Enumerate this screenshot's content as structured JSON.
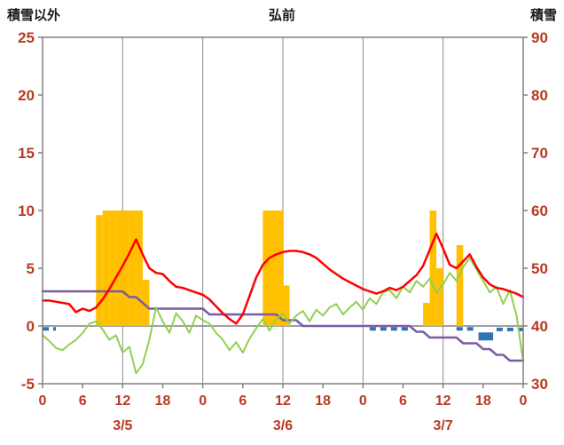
{
  "header": {
    "left_label": "積雪以外",
    "title": "弘前",
    "right_label": "積雪"
  },
  "colors": {
    "axis_label": "#b73a23",
    "grid": "#8c8c8c",
    "border": "#808080",
    "zero_line": "#808080",
    "bars": "#FFC000",
    "temperature": "#FF0000",
    "green": "#92D050",
    "snow_depth": "#7B5BA6",
    "blue": "#2E74B5",
    "title_text": "#1a1a1a"
  },
  "chart_data": {
    "type": "line",
    "title": "弘前",
    "left_axis": {
      "label": "積雪以外",
      "min": -5,
      "max": 25,
      "ticks": [
        25,
        20,
        15,
        10,
        5,
        0,
        -5
      ]
    },
    "right_axis": {
      "label": "積雪",
      "min": 30,
      "max": 90,
      "ticks": [
        90,
        80,
        70,
        60,
        50,
        40,
        30
      ]
    },
    "x_axis": {
      "min": 0,
      "max": 72,
      "tick_interval": 6,
      "gridline_interval": 12,
      "tick_labels": [
        "0",
        "6",
        "12",
        "18",
        "0",
        "6",
        "12",
        "18",
        "0",
        "6",
        "12",
        "18",
        "0"
      ],
      "day_labels": [
        {
          "label": "3/5",
          "hour": 12
        },
        {
          "label": "3/6",
          "hour": 36
        },
        {
          "label": "3/7",
          "hour": 60
        }
      ]
    },
    "series": [
      {
        "id": "sunshine-bars",
        "type": "bar",
        "axis": "left",
        "color_key": "bars",
        "points": [
          [
            8,
            9.6
          ],
          [
            9,
            10
          ],
          [
            10,
            10
          ],
          [
            11,
            10
          ],
          [
            12,
            10
          ],
          [
            13,
            10
          ],
          [
            14,
            10
          ],
          [
            15,
            4
          ],
          [
            33,
            10
          ],
          [
            34,
            10
          ],
          [
            35,
            10
          ],
          [
            36,
            3.5
          ],
          [
            57,
            2
          ],
          [
            58,
            10
          ],
          [
            59,
            5
          ],
          [
            62,
            7
          ]
        ]
      },
      {
        "id": "blue-tick-segments",
        "type": "segments",
        "axis": "left",
        "color_key": "blue",
        "segments": [
          {
            "start": 0,
            "end": 2,
            "value": -0.25,
            "thick": false
          },
          {
            "start": 49,
            "end": 55,
            "value": -0.25,
            "thick": false
          },
          {
            "start": 62,
            "end": 65,
            "value": -0.25,
            "thick": false
          },
          {
            "start": 65.3,
            "end": 67.5,
            "value": -0.9,
            "thick": true
          },
          {
            "start": 68,
            "end": 72,
            "value": -0.3,
            "thick": false
          }
        ]
      },
      {
        "id": "snow-depth-line",
        "type": "line",
        "axis": "right",
        "color_key": "snow_depth",
        "width": 2.5,
        "values": [
          46,
          46,
          46,
          46,
          46,
          46,
          46,
          46,
          46,
          46,
          46,
          46,
          46,
          45,
          45,
          44,
          43,
          43,
          43,
          43,
          43,
          43,
          43,
          43,
          43,
          42,
          42,
          42,
          42,
          42,
          42,
          42,
          42,
          42,
          42,
          42,
          41,
          41,
          41,
          40,
          40,
          40,
          40,
          40,
          40,
          40,
          40,
          40,
          40,
          40,
          40,
          40,
          40,
          40,
          40,
          40,
          39,
          39,
          38,
          38,
          38,
          38,
          38,
          37,
          37,
          37,
          36,
          36,
          35,
          35,
          34,
          34,
          34
        ]
      },
      {
        "id": "green-line",
        "type": "line",
        "axis": "left",
        "color_key": "green",
        "width": 2,
        "values": [
          -0.8,
          -1.3,
          -1.9,
          -2.1,
          -1.6,
          -1.2,
          -0.6,
          0.2,
          0.4,
          -0.3,
          -1.2,
          -0.8,
          -2.3,
          -1.8,
          -4.1,
          -3.3,
          -1.2,
          1.6,
          0.4,
          -0.6,
          1.1,
          0.4,
          -0.6,
          0.9,
          0.5,
          0.2,
          -0.6,
          -1.2,
          -2.1,
          -1.4,
          -2.3,
          -1.1,
          -0.2,
          0.6,
          -0.4,
          0.6,
          1.1,
          0.2,
          0.9,
          1.3,
          0.4,
          1.4,
          0.9,
          1.6,
          1.9,
          1.0,
          1.6,
          2.1,
          1.4,
          2.4,
          1.9,
          2.9,
          3.1,
          2.4,
          3.4,
          2.9,
          3.9,
          3.4,
          4.1,
          2.9,
          3.6,
          4.6,
          3.9,
          5.1,
          5.9,
          4.9,
          3.9,
          2.9,
          3.4,
          1.9,
          3.1,
          0.9,
          -3.1
        ]
      },
      {
        "id": "temperature-line",
        "type": "line",
        "axis": "left",
        "color_key": "temperature",
        "width": 2.5,
        "values": [
          2.2,
          2.2,
          2.1,
          2.0,
          1.9,
          1.2,
          1.5,
          1.3,
          1.6,
          2.3,
          3.2,
          4.2,
          5.2,
          6.3,
          7.5,
          6.2,
          5.0,
          4.6,
          4.5,
          3.9,
          3.4,
          3.3,
          3.1,
          2.9,
          2.7,
          2.3,
          1.7,
          1.1,
          0.6,
          0.2,
          1.0,
          2.6,
          4.2,
          5.3,
          5.9,
          6.2,
          6.4,
          6.5,
          6.5,
          6.4,
          6.2,
          5.9,
          5.4,
          4.9,
          4.5,
          4.1,
          3.8,
          3.5,
          3.2,
          3.0,
          2.8,
          3.0,
          3.3,
          3.1,
          3.4,
          3.9,
          4.4,
          5.2,
          6.6,
          8.0,
          6.7,
          5.3,
          5.0,
          5.6,
          6.2,
          5.1,
          4.2,
          3.6,
          3.3,
          3.2,
          3.0,
          2.8,
          2.5
        ]
      }
    ]
  }
}
